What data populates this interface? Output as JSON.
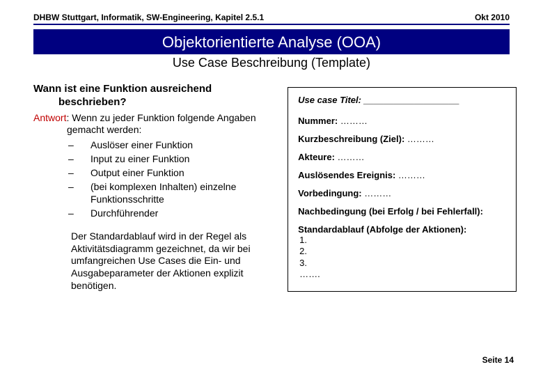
{
  "header": {
    "left": "DHBW Stuttgart, Informatik, SW-Engineering, Kapitel 2.5.1",
    "right": "Okt 2010"
  },
  "titleBanner": "Objektorientierte Analyse (OOA)",
  "subtitle": "Use Case Beschreibung (Template)",
  "left": {
    "question_l1": "Wann ist eine Funktion ausreichend",
    "question_l2": "beschrieben?",
    "answer_label": "Antwort",
    "answer_rest": ":  Wenn zu jeder Funktion folgende Angaben",
    "answer_cont": "gemacht werden:",
    "bullets": [
      "Auslöser einer Funktion",
      "Input zu einer Funktion",
      "Output einer Funktion",
      "(bei komplexen Inhalten) einzelne Funktionsschritte",
      "Durchführender"
    ],
    "paragraph": "Der Standardablauf wird in der Regel als Aktivitätsdiagramm gezeichnet, da wir bei umfangreichen Use Cases die Ein- und Ausgabeparameter der Aktionen explizit benötigen."
  },
  "template": {
    "usecase_title_label": "Use case Titel: ___________________",
    "number_label": "Nummer:",
    "number_dots": " ………",
    "kurz_label": "Kurzbeschreibung (Ziel):",
    "kurz_dots": " ………",
    "akteure_label": "Akteure:",
    "akteure_dots": " ………",
    "ausloes_label": "Auslösendes Ereignis:",
    "ausloes_dots": " ………",
    "vorbed_label": "Vorbedingung:",
    "vorbed_dots": " ………",
    "nachbed_label": "Nachbedingung (bei Erfolg / bei Fehlerfall):",
    "std_label": "Standardablauf (Abfolge der Aktionen):",
    "std_items": [
      "1.",
      "2.",
      "3.",
      "……."
    ]
  },
  "footer": "Seite 14",
  "colors": {
    "banner_bg": "#000080",
    "banner_fg": "#ffffff",
    "answer_color": "#c00000"
  }
}
